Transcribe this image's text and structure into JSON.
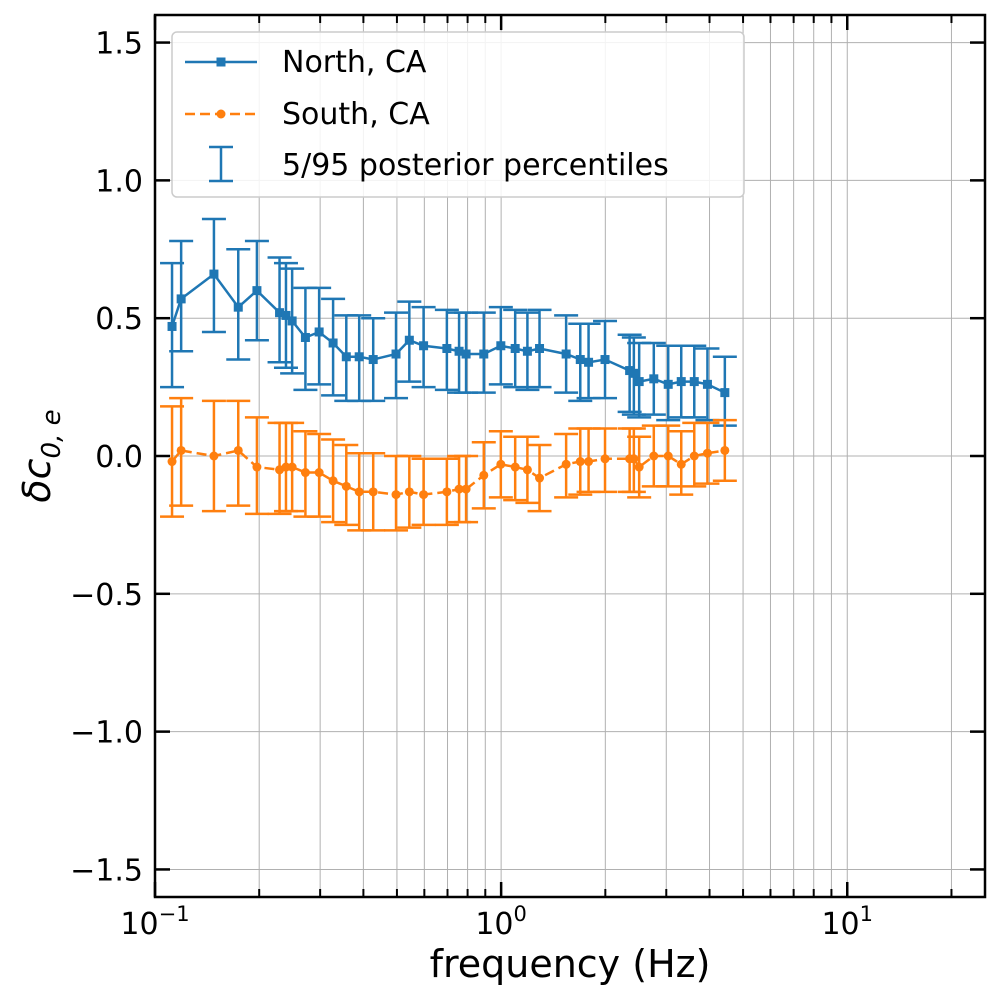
{
  "chart_data": {
    "type": "line",
    "xscale": "log",
    "xlabel": "frequency (Hz)",
    "ylabel_base": "δc",
    "ylabel_sub": "0, e",
    "xlim": [
      0.1,
      25
    ],
    "ylim": [
      -1.6,
      1.6
    ],
    "grid": true,
    "legend_position": "top-left",
    "x_ticks": [
      {
        "value": 0.1,
        "base": "10",
        "exp": "−1"
      },
      {
        "value": 1,
        "base": "10",
        "exp": "0"
      },
      {
        "value": 10,
        "base": "10",
        "exp": "1"
      }
    ],
    "y_ticks": [
      {
        "value": 1.5,
        "label": "1.5"
      },
      {
        "value": 1.0,
        "label": "1.0"
      },
      {
        "value": 0.5,
        "label": "0.5"
      },
      {
        "value": 0.0,
        "label": "0.0"
      },
      {
        "value": -0.5,
        "label": "−0.5"
      },
      {
        "value": -1.0,
        "label": "−1.0"
      },
      {
        "value": -1.5,
        "label": "−1.5"
      }
    ],
    "legend": {
      "errorbar_label": "5/95 posterior percentiles"
    },
    "x": [
      0.112,
      0.119,
      0.148,
      0.174,
      0.197,
      0.229,
      0.239,
      0.249,
      0.272,
      0.298,
      0.327,
      0.357,
      0.389,
      0.427,
      0.497,
      0.543,
      0.597,
      0.697,
      0.756,
      0.792,
      0.891,
      0.998,
      1.098,
      1.191,
      1.291,
      1.541,
      1.693,
      1.789,
      1.996,
      2.351,
      2.418,
      2.505,
      2.761,
      3.039,
      3.314,
      3.614,
      3.945,
      4.429
    ],
    "series": [
      {
        "name": "North, CA",
        "color": "#1f77b4",
        "marker": "square",
        "linestyle": "solid",
        "values": [
          0.47,
          0.57,
          0.66,
          0.54,
          0.6,
          0.52,
          0.51,
          0.49,
          0.43,
          0.45,
          0.41,
          0.36,
          0.36,
          0.35,
          0.37,
          0.42,
          0.4,
          0.39,
          0.38,
          0.37,
          0.37,
          0.4,
          0.39,
          0.38,
          0.39,
          0.37,
          0.35,
          0.34,
          0.35,
          0.31,
          0.3,
          0.27,
          0.28,
          0.26,
          0.27,
          0.27,
          0.26,
          0.23
        ],
        "lower": [
          0.25,
          0.38,
          0.45,
          0.35,
          0.42,
          0.34,
          0.32,
          0.3,
          0.24,
          0.26,
          0.22,
          0.2,
          0.2,
          0.2,
          0.21,
          0.27,
          0.25,
          0.24,
          0.23,
          0.23,
          0.23,
          0.26,
          0.25,
          0.24,
          0.25,
          0.23,
          0.2,
          0.21,
          0.21,
          0.16,
          0.15,
          0.14,
          0.15,
          0.13,
          0.14,
          0.14,
          0.13,
          0.11
        ],
        "upper": [
          0.7,
          0.78,
          0.86,
          0.75,
          0.78,
          0.72,
          0.7,
          0.68,
          0.61,
          0.61,
          0.57,
          0.51,
          0.51,
          0.5,
          0.52,
          0.56,
          0.54,
          0.53,
          0.52,
          0.52,
          0.52,
          0.54,
          0.53,
          0.52,
          0.53,
          0.51,
          0.48,
          0.48,
          0.49,
          0.44,
          0.43,
          0.41,
          0.41,
          0.4,
          0.4,
          0.4,
          0.39,
          0.36
        ]
      },
      {
        "name": "South, CA",
        "color": "#ff7f0e",
        "marker": "circle",
        "linestyle": "dashed",
        "values": [
          -0.02,
          0.02,
          0.0,
          0.02,
          -0.04,
          -0.05,
          -0.04,
          -0.04,
          -0.06,
          -0.06,
          -0.09,
          -0.11,
          -0.13,
          -0.13,
          -0.14,
          -0.13,
          -0.14,
          -0.13,
          -0.12,
          -0.12,
          -0.07,
          -0.03,
          -0.04,
          -0.05,
          -0.08,
          -0.03,
          -0.02,
          -0.02,
          -0.01,
          -0.01,
          -0.01,
          -0.04,
          0.0,
          0.0,
          -0.03,
          0.0,
          0.01,
          0.02
        ],
        "lower": [
          -0.22,
          -0.18,
          -0.2,
          -0.18,
          -0.21,
          -0.21,
          -0.2,
          -0.2,
          -0.22,
          -0.22,
          -0.24,
          -0.25,
          -0.27,
          -0.27,
          -0.27,
          -0.26,
          -0.25,
          -0.25,
          -0.24,
          -0.24,
          -0.19,
          -0.15,
          -0.16,
          -0.17,
          -0.2,
          -0.15,
          -0.14,
          -0.13,
          -0.13,
          -0.13,
          -0.13,
          -0.15,
          -0.11,
          -0.11,
          -0.14,
          -0.11,
          -0.1,
          -0.09
        ],
        "upper": [
          0.18,
          0.21,
          0.2,
          0.2,
          0.14,
          0.12,
          0.12,
          0.12,
          0.09,
          0.08,
          0.06,
          0.04,
          0.01,
          0.01,
          0.0,
          0.0,
          -0.01,
          -0.01,
          0.0,
          0.0,
          0.05,
          0.09,
          0.07,
          0.07,
          0.04,
          0.08,
          0.1,
          0.1,
          0.1,
          0.1,
          0.1,
          0.07,
          0.11,
          0.11,
          0.09,
          0.12,
          0.12,
          0.13
        ]
      }
    ]
  }
}
